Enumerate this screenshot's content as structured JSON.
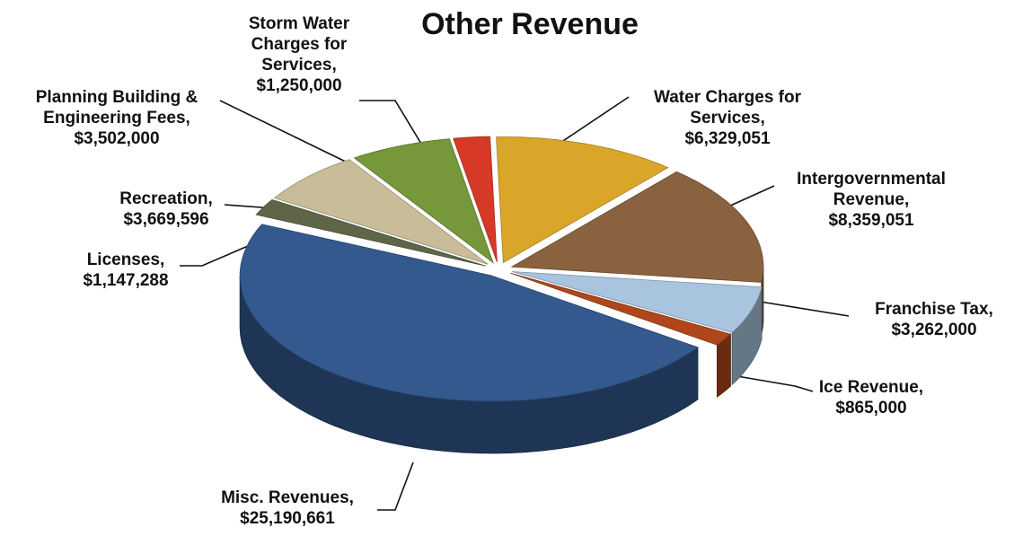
{
  "chart_data": {
    "type": "pie",
    "title": "Other Revenue",
    "categories": [
      "Storm Water Charges for Services,",
      "Water Charges for Services,",
      "Intergovernmental Revenue,",
      "Franchise Tax,",
      "Ice Revenue,",
      "Misc. Revenues,",
      "Licenses,",
      "Recreation,",
      "Planning Building & Engineering Fees,"
    ],
    "values": [
      1250000,
      6329051,
      8359051,
      3262000,
      865000,
      25190661,
      1147288,
      3669596,
      3502000
    ],
    "value_labels": [
      "$1,250,000",
      "$6,329,051",
      "$8,359,051",
      "$3,262,000",
      "$865,000",
      "$25,190,661",
      "$1,147,288",
      "$3,669,596",
      "$3,502,000"
    ],
    "colors": [
      "#d63a27",
      "#d9a62a",
      "#8a6240",
      "#a9c4de",
      "#b0471c",
      "#34598f",
      "#5e6647",
      "#c8bd98",
      "#76973a"
    ]
  }
}
